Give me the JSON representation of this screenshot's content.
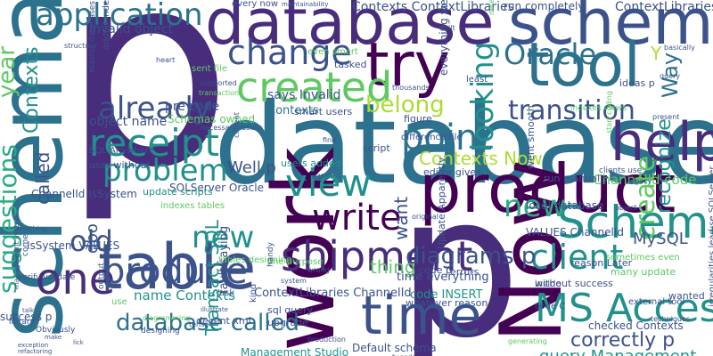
{
  "palette": {
    "purple": "#440154",
    "indigo": "#472d7b",
    "blue": "#3b528b",
    "steel": "#2c728e",
    "teal": "#21918c",
    "green": "#28ae80",
    "lime": "#5ec962",
    "yellow": "#addc30",
    "gold": "#fde725"
  },
  "words": [
    {
      "text": "p",
      "color": "#472d7b"
    },
    {
      "text": "database",
      "color": "#2c728e"
    },
    {
      "text": "database",
      "color": "#472d7b"
    },
    {
      "text": "schema",
      "color": "#3b528b"
    },
    {
      "text": "schema",
      "color": "#2c728e"
    },
    {
      "text": "p",
      "color": "#472d7b"
    },
    {
      "text": "work",
      "color": "#440154"
    },
    {
      "text": "Now",
      "color": "#440154"
    },
    {
      "text": "table",
      "color": "#3b528b"
    },
    {
      "text": "product",
      "color": "#440154"
    },
    {
      "text": "help",
      "color": "#472d7b"
    },
    {
      "text": "time",
      "color": "#3b528b"
    },
    {
      "text": "tool",
      "color": "#2c728e"
    },
    {
      "text": "try",
      "color": "#440154"
    },
    {
      "text": "Schema",
      "color": "#21918c"
    },
    {
      "text": "MS Access",
      "color": "#21918c"
    },
    {
      "text": "shipment",
      "color": "#472d7b"
    },
    {
      "text": "one",
      "color": "#472d7b"
    },
    {
      "text": "produce",
      "color": "#3b528b"
    },
    {
      "text": "write",
      "color": "#440154"
    },
    {
      "text": "view",
      "color": "#21918c"
    },
    {
      "text": "point",
      "color": "#2c728e"
    },
    {
      "text": "receipt",
      "color": "#21918c"
    },
    {
      "text": "created",
      "color": "#5ec962"
    },
    {
      "text": "change",
      "color": "#3b528b"
    },
    {
      "text": "application",
      "color": "#2c728e"
    },
    {
      "text": "new",
      "color": "#21918c"
    },
    {
      "text": "new",
      "color": "#28ae80"
    },
    {
      "text": "client",
      "color": "#21918c"
    },
    {
      "text": "old",
      "color": "#3b528b"
    },
    {
      "text": "problem",
      "color": "#21918c"
    },
    {
      "text": "already",
      "color": "#3b528b"
    },
    {
      "text": "looking",
      "color": "#21918c"
    },
    {
      "text": "Oracle",
      "color": "#2c728e"
    },
    {
      "text": "suggestions",
      "color": "#28ae80"
    },
    {
      "text": "transition",
      "color": "#3b528b"
    },
    {
      "text": "database called",
      "color": "#2c728e"
    },
    {
      "text": "diagrams p",
      "color": "#3b528b"
    },
    {
      "text": "Contexts",
      "color": "#21918c"
    },
    {
      "text": "called",
      "color": "#3b528b"
    },
    {
      "text": "year",
      "color": "#5ec962"
    },
    {
      "text": "create",
      "color": "#5ec962"
    },
    {
      "text": "Way",
      "color": "#2c728e"
    },
    {
      "text": "belong",
      "color": "#addc30"
    },
    {
      "text": "Contexts Now",
      "color": "#addc30"
    },
    {
      "text": "recognize",
      "color": "#21918c"
    },
    {
      "text": "correctly p",
      "color": "#3b528b"
    },
    {
      "text": "query Management",
      "color": "#21918c"
    },
    {
      "text": "MySQL",
      "color": "#3b528b"
    },
    {
      "text": "Y",
      "color": "#addc30"
    },
    {
      "text": "want",
      "color": "#3b528b"
    },
    {
      "text": "thing",
      "color": "#5ec962"
    },
    {
      "text": "Well p",
      "color": "#3b528b"
    },
    {
      "text": "dbo",
      "color": "#3b528b"
    },
    {
      "text": "says Invalid",
      "color": "#3b528b"
    },
    {
      "text": "Invalid object",
      "color": "#3b528b"
    },
    {
      "text": "object name",
      "color": "#3b528b"
    },
    {
      "text": "name Contexts",
      "color": "#21918c"
    },
    {
      "text": "pre code",
      "color": "#3b528b"
    },
    {
      "text": "Contexts ContextLibraries",
      "color": "#3b528b"
    },
    {
      "text": "ContextLibraries' p",
      "color": "#3b528b"
    },
    {
      "text": "run completely",
      "color": "#3b528b"
    },
    {
      "text": "SQLServer Oracle",
      "color": "#3b528b"
    },
    {
      "text": "IsSystem VALUES",
      "color": "#3b528b"
    },
    {
      "text": "ChannelId IsSystem",
      "color": "#3b528b"
    },
    {
      "text": "ChannelId code",
      "color": "#5ec962"
    },
    {
      "text": "Contexts",
      "color": "#2c728e"
    },
    {
      "text": "Schemas owned",
      "color": "#5ec962"
    },
    {
      "text": "fault saying",
      "color": "#3b528b"
    },
    {
      "text": "Transact SQL",
      "color": "#21918c"
    },
    {
      "text": "Management Studio",
      "color": "#21918c"
    },
    {
      "text": "Default schema",
      "color": "#3b528b"
    },
    {
      "text": "checked Contexts",
      "color": "#3b528b"
    },
    {
      "text": "local database",
      "color": "#3b528b"
    },
    {
      "text": "VALUES ChannelId",
      "color": "#3b528b"
    },
    {
      "text": "use SQLServer",
      "color": "#3b528b"
    },
    {
      "text": "ContextLibraries ChannelId",
      "color": "#3b528b"
    },
    {
      "text": "code INSERT",
      "color": "#21918c"
    },
    {
      "text": "users added",
      "color": "#21918c"
    },
    {
      "text": "time everything",
      "color": "#3b528b"
    },
    {
      "text": "without success",
      "color": "#3b528b"
    },
    {
      "text": "run manually",
      "color": "#3b528b"
    },
    {
      "text": "upgrade",
      "color": "#3b528b"
    },
    {
      "text": "sql query",
      "color": "#3b528b"
    },
    {
      "text": "whatever reason",
      "color": "#3b528b"
    },
    {
      "text": "reason Later",
      "color": "#3b528b"
    },
    {
      "text": "many update",
      "color": "#5ec962"
    },
    {
      "text": "ideas p",
      "color": "#3b528b"
    },
    {
      "text": "sometimes even",
      "color": "#5ec962"
    },
    {
      "text": "external tool",
      "color": "#3b528b"
    },
    {
      "text": "wanted",
      "color": "#3b528b"
    },
    {
      "text": "update scripts",
      "color": "#21918c"
    },
    {
      "text": "success p",
      "color": "#3b528b"
    },
    {
      "text": "library",
      "color": "#3b528b"
    },
    {
      "text": "decent xml",
      "color": "#3b528b"
    },
    {
      "text": "indexes tables",
      "color": "#5ec962"
    },
    {
      "text": "user without",
      "color": "#3b528b"
    },
    {
      "text": "editor gives",
      "color": "#3b528b"
    },
    {
      "text": "difference file",
      "color": "#3b528b"
    },
    {
      "text": "everything went",
      "color": "#3b528b"
    },
    {
      "text": "smart users",
      "color": "#3b528b"
    },
    {
      "text": "even smart",
      "color": "#5ec962"
    },
    {
      "text": "sent file",
      "color": "#5ec962"
    },
    {
      "text": "figure",
      "color": "#3b528b"
    },
    {
      "text": "script",
      "color": "#3b528b"
    },
    {
      "text": "code p",
      "color": "#3b528b"
    },
    {
      "text": "errors",
      "color": "#3b528b"
    },
    {
      "text": "inside",
      "color": "#3b528b"
    },
    {
      "text": "code C",
      "color": "#3b528b"
    },
    {
      "text": "ask",
      "color": "#3b528b"
    },
    {
      "text": "kind",
      "color": "#3b528b"
    },
    {
      "text": "use",
      "color": "#5ec962"
    },
    {
      "text": "every now",
      "color": "#3b528b"
    },
    {
      "text": "tasked",
      "color": "#3b528b"
    },
    {
      "text": "least",
      "color": "#3b528b"
    },
    {
      "text": "added indexes",
      "color": "#3b528b"
    },
    {
      "text": "master databases",
      "color": "#3b528b"
    },
    {
      "text": "Update Apparently",
      "color": "#3b528b"
    },
    {
      "text": "went smooth",
      "color": "#3b528b"
    },
    {
      "text": "one purpose",
      "color": "#5ec962"
    },
    {
      "text": "Obviously",
      "color": "#3b528b"
    },
    {
      "text": "verify validate",
      "color": "#3b528b"
    },
    {
      "text": "SQL Anywhere",
      "color": "#3b528b"
    },
    {
      "text": "xml file",
      "color": "#3b528b"
    },
    {
      "text": "thousands",
      "color": "#3b528b"
    },
    {
      "text": "irregularities lead",
      "color": "#3b528b"
    },
    {
      "text": "output",
      "color": "#3b528b"
    },
    {
      "text": "tables designing",
      "color": "#5ec962"
    },
    {
      "text": "designing",
      "color": "#3b528b"
    },
    {
      "text": "indexes views",
      "color": "#5ec962"
    },
    {
      "text": "start coding",
      "color": "#5ec962"
    },
    {
      "text": "clients use",
      "color": "#3b528b"
    },
    {
      "text": "structure",
      "color": "#3b528b"
    },
    {
      "text": "maintainability",
      "color": "#3b528b"
    },
    {
      "text": "tuesday",
      "color": "#3b528b"
    },
    {
      "text": "production",
      "color": "#3b528b"
    },
    {
      "text": "refactoring",
      "color": "#3b528b"
    },
    {
      "text": "generating",
      "color": "#5ec962"
    },
    {
      "text": "techniques",
      "color": "#3b528b"
    },
    {
      "text": "present",
      "color": "#3b528b"
    },
    {
      "text": "basically",
      "color": "#3b528b"
    },
    {
      "text": "query",
      "color": "#3b528b"
    },
    {
      "text": "tips",
      "color": "#3b528b"
    },
    {
      "text": "legacy",
      "color": "#3b528b"
    },
    {
      "text": "object",
      "color": "#3b528b"
    },
    {
      "text": "system",
      "color": "#3b528b"
    },
    {
      "text": "management system",
      "color": "#3b528b"
    },
    {
      "text": "diagramming",
      "color": "#5ec962"
    },
    {
      "text": "something",
      "color": "#3b528b"
    },
    {
      "text": "exception",
      "color": "#3b528b"
    },
    {
      "text": "heart",
      "color": "#3b528b"
    },
    {
      "text": "supported",
      "color": "#3b528b"
    },
    {
      "text": "transaction",
      "color": "#5ec962"
    },
    {
      "text": "current",
      "color": "#3b528b"
    },
    {
      "text": "necessary results",
      "color": "#3b528b"
    },
    {
      "text": "handy",
      "color": "#3b528b"
    },
    {
      "text": "find",
      "color": "#3b528b"
    },
    {
      "text": "either",
      "color": "#3b528b"
    },
    {
      "text": "original",
      "color": "#3b528b"
    },
    {
      "text": "wrong",
      "color": "#3b528b"
    },
    {
      "text": "built",
      "color": "#3b528b"
    },
    {
      "text": "detected",
      "color": "#5ec962"
    },
    {
      "text": "come",
      "color": "#3b528b"
    },
    {
      "text": "talk",
      "color": "#3b528b"
    },
    {
      "text": "lick",
      "color": "#3b528b"
    },
    {
      "text": "make",
      "color": "#3b528b"
    },
    {
      "text": "illustrate",
      "color": "#3b528b"
    },
    {
      "text": "tense",
      "color": "#3b528b"
    }
  ]
}
